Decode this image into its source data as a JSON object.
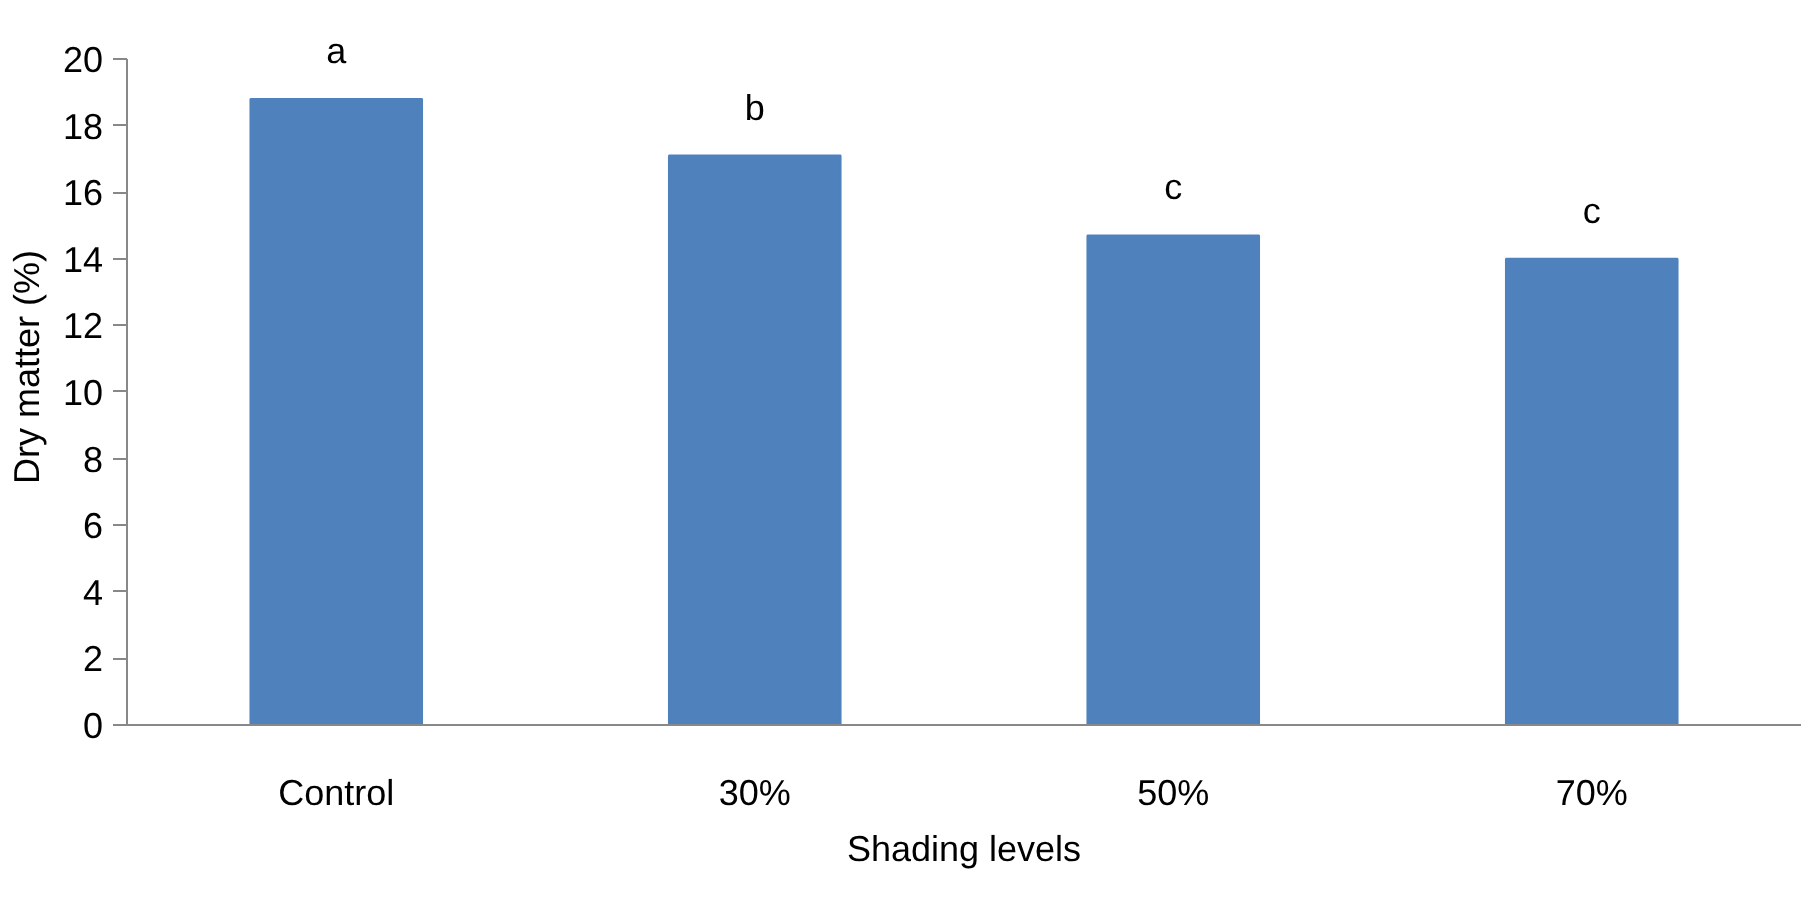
{
  "chart_data": {
    "type": "bar",
    "xlabel": "Shading levels",
    "ylabel": "Dry matter (%)",
    "categories": [
      "Control",
      "30%",
      "50%",
      "70%"
    ],
    "values": [
      18.8,
      17.1,
      14.7,
      14.0
    ],
    "color": "#4f81bd",
    "ylim": [
      0,
      20
    ],
    "yticks": [
      0,
      2,
      4,
      6,
      8,
      10,
      12,
      14,
      16,
      18,
      20
    ],
    "grid": false,
    "annotations": [
      {
        "text": "a",
        "x": "Control",
        "y": 18.8
      },
      {
        "text": "b",
        "x": "30%",
        "y": 17.1
      },
      {
        "text": "c",
        "x": "50%",
        "y": 14.7
      },
      {
        "text": "c",
        "x": "70%",
        "y": 14.0
      }
    ]
  }
}
